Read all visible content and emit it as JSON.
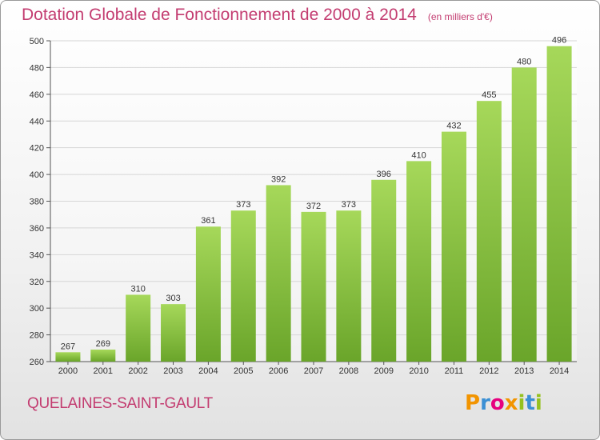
{
  "title": "Dotation Globale de Fonctionnement de 2000 à 2014",
  "unit_note": "(en milliers d'€)",
  "commune": "QUELAINES-SAINT-GAULT",
  "logo": {
    "letters": [
      "P",
      "r",
      "o",
      "x",
      "i",
      "t",
      "i"
    ],
    "colors": [
      "#f29400",
      "#3a8fd4",
      "#e6007e",
      "#f29400",
      "#95c11f",
      "#3a8fd4",
      "#95c11f"
    ]
  },
  "colors": {
    "title": "#c33c70",
    "bar_light": "#a6d85a",
    "bar_dark": "#6aa52a",
    "grid": "#d6d6d6"
  },
  "chart_data": {
    "type": "bar",
    "categories": [
      "2000",
      "2001",
      "2002",
      "2003",
      "2004",
      "2005",
      "2006",
      "2007",
      "2008",
      "2009",
      "2010",
      "2011",
      "2012",
      "2013",
      "2014"
    ],
    "values": [
      267,
      269,
      310,
      303,
      361,
      373,
      392,
      372,
      373,
      396,
      410,
      432,
      455,
      480,
      496
    ],
    "ylim": [
      260,
      500
    ],
    "yticks": [
      260,
      280,
      300,
      320,
      340,
      360,
      380,
      400,
      420,
      440,
      460,
      480,
      500
    ],
    "grid": true,
    "data_labels": true
  }
}
